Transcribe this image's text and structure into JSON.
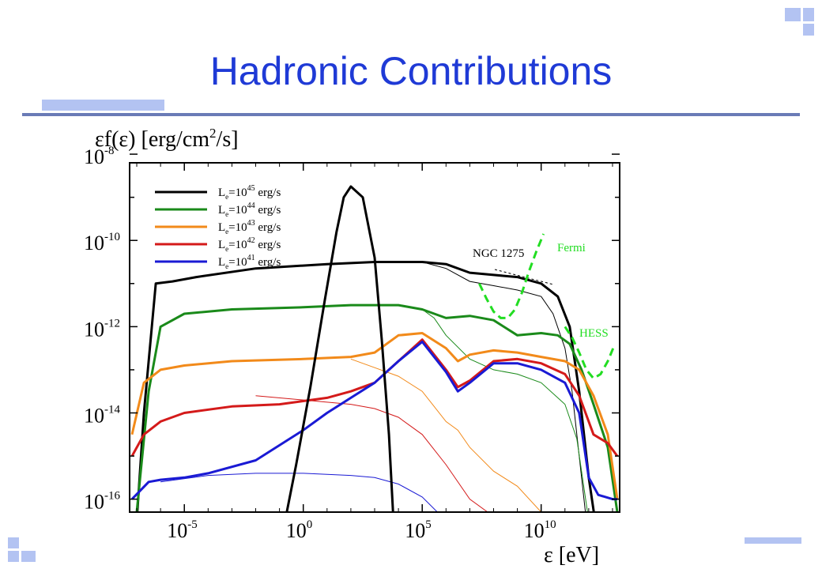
{
  "slide": {
    "title": "Hadronic Contributions"
  },
  "colors": {
    "title": "#1f3ad6",
    "decoration": "#b3c3f2",
    "rule": "#6a7bb6"
  },
  "chart_data": {
    "type": "line",
    "title": "",
    "ylabel": "εf(ε) [erg/cm²/s]",
    "xlabel": "ε [eV]",
    "x_scale": "log",
    "y_scale": "log",
    "xlim_log10": [
      -7.3,
      13.3
    ],
    "ylim_log10": [
      -16.3,
      -8.2
    ],
    "x_ticks": [
      {
        "base": "10",
        "exp": "-5",
        "log10": -5
      },
      {
        "base": "10",
        "exp": "0",
        "log10": 0
      },
      {
        "base": "10",
        "exp": "5",
        "log10": 5
      },
      {
        "base": "10",
        "exp": "10",
        "log10": 10
      }
    ],
    "y_ticks": [
      {
        "base": "10",
        "exp": "-8",
        "log10": -8
      },
      {
        "base": "10",
        "exp": "-10",
        "log10": -10
      },
      {
        "base": "10",
        "exp": "-12",
        "log10": -12
      },
      {
        "base": "10",
        "exp": "-14",
        "log10": -14
      },
      {
        "base": "10",
        "exp": "-16",
        "log10": -16
      }
    ],
    "legend_position": "top-left",
    "series": [
      {
        "name": "Le=10^45 erg/s",
        "color": "#000000",
        "label": {
          "sub": "e",
          "exp": "45"
        },
        "log_x": [
          -7.0,
          -6.7,
          -6.2,
          -5.5,
          -4.5,
          -2,
          1,
          3,
          5,
          6,
          7,
          8,
          9,
          10,
          10.7,
          11.2,
          11.6,
          12.0,
          12.4
        ],
        "log_y": [
          -16.5,
          -14.0,
          -11.0,
          -10.95,
          -10.85,
          -10.65,
          -10.55,
          -10.5,
          -10.5,
          -10.55,
          -10.75,
          -10.8,
          -10.85,
          -11.0,
          -11.3,
          -12.0,
          -13.5,
          -15.5,
          -17.0
        ],
        "thin_log_x": [
          5,
          6,
          7,
          8,
          9,
          10,
          10.5,
          11.0,
          11.3,
          11.6,
          12.0
        ],
        "thin_log_y": [
          -10.5,
          -10.65,
          -10.95,
          -11.05,
          -11.15,
          -11.3,
          -11.7,
          -12.5,
          -13.5,
          -15.0,
          -17.0
        ]
      },
      {
        "name": "Le=10^44 erg/s",
        "color": "#1a8a1a",
        "label": {
          "sub": "e",
          "exp": "44"
        },
        "log_x": [
          -7.0,
          -6.5,
          -6.0,
          -5.0,
          -3,
          0,
          2,
          4,
          5,
          6,
          7,
          8,
          9,
          10,
          10.7,
          11.2,
          11.7,
          12.2,
          12.8,
          13.2
        ],
        "log_y": [
          -16.3,
          -13.5,
          -12.0,
          -11.7,
          -11.6,
          -11.55,
          -11.5,
          -11.5,
          -11.6,
          -11.8,
          -11.75,
          -11.85,
          -12.2,
          -12.15,
          -12.2,
          -12.4,
          -13.0,
          -13.8,
          -14.8,
          -16.3
        ],
        "thin_log_x": [
          5,
          5.5,
          6,
          7,
          8,
          9,
          10,
          11,
          11.5,
          12.0
        ],
        "thin_log_y": [
          -11.6,
          -11.8,
          -12.2,
          -12.75,
          -13.0,
          -13.1,
          -13.3,
          -13.8,
          -14.6,
          -16.5
        ]
      },
      {
        "name": "Le=10^43 erg/s",
        "color": "#f28a1a",
        "label": {
          "sub": "e",
          "exp": "43"
        },
        "log_x": [
          -7.2,
          -6.7,
          -6.0,
          -5.0,
          -3,
          0,
          2,
          3,
          4,
          5,
          6,
          6.5,
          7,
          8,
          9,
          10,
          11,
          11.6,
          12.2,
          12.8,
          13.2
        ],
        "log_y": [
          -14.5,
          -13.3,
          -13.0,
          -12.9,
          -12.8,
          -12.75,
          -12.7,
          -12.6,
          -12.2,
          -12.15,
          -12.5,
          -12.8,
          -12.65,
          -12.55,
          -12.6,
          -12.7,
          -12.8,
          -13.0,
          -13.6,
          -14.5,
          -16.0
        ],
        "thin_log_x": [
          2,
          3,
          4,
          5,
          6,
          6.5,
          7,
          8,
          9,
          10
        ],
        "thin_log_y": [
          -12.75,
          -12.95,
          -13.15,
          -13.5,
          -14.2,
          -14.4,
          -14.8,
          -15.35,
          -15.7,
          -16.3
        ]
      },
      {
        "name": "Le=10^42 erg/s",
        "color": "#d41a1a",
        "label": {
          "sub": "e",
          "exp": "42"
        },
        "log_x": [
          -7.2,
          -6.7,
          -6.0,
          -5.0,
          -3,
          -1,
          1,
          2,
          3,
          4,
          5,
          6,
          6.5,
          7,
          8,
          9,
          10,
          11,
          11.6,
          12.2,
          12.8,
          13.2
        ],
        "log_y": [
          -15.0,
          -14.5,
          -14.2,
          -14.0,
          -13.85,
          -13.8,
          -13.65,
          -13.5,
          -13.3,
          -12.8,
          -12.3,
          -13.0,
          -13.4,
          -13.25,
          -12.8,
          -12.75,
          -12.85,
          -13.1,
          -13.6,
          -14.5,
          -14.7,
          -15.0
        ],
        "thin_log_x": [
          -2,
          0,
          1,
          2,
          3,
          4,
          5,
          6,
          7,
          8,
          9
        ],
        "thin_log_y": [
          -13.6,
          -13.7,
          -13.75,
          -13.8,
          -13.9,
          -14.1,
          -14.5,
          -15.2,
          -16.0,
          -16.4,
          -16.6
        ]
      },
      {
        "name": "Le=10^41 erg/s",
        "color": "#1a1ad4",
        "label": {
          "sub": "e",
          "exp": "41"
        },
        "log_x": [
          -7.2,
          -6.5,
          -6.0,
          -5.0,
          -4,
          -2,
          0,
          1,
          2,
          3,
          4,
          5,
          6,
          6.5,
          7,
          8,
          9,
          10,
          11,
          11.6,
          12.0,
          12.4,
          13.0,
          13.2
        ],
        "log_y": [
          -16.0,
          -15.6,
          -15.55,
          -15.5,
          -15.4,
          -15.1,
          -14.4,
          -14.0,
          -13.65,
          -13.3,
          -12.8,
          -12.35,
          -13.05,
          -13.5,
          -13.3,
          -12.85,
          -12.85,
          -13.0,
          -13.3,
          -14.0,
          -15.5,
          -15.9,
          -16.0,
          -16.0
        ],
        "thin_log_x": [
          -6.0,
          -4,
          -2,
          0,
          2,
          3,
          4,
          5,
          6,
          6.5,
          7,
          8
        ],
        "thin_log_y": [
          -15.6,
          -15.45,
          -15.4,
          -15.4,
          -15.45,
          -15.5,
          -15.65,
          -15.95,
          -16.5,
          -16.7,
          -16.9,
          -17.5
        ]
      },
      {
        "name": "peak",
        "color": "#000000",
        "log_x": [
          -0.8,
          -0.3,
          0.3,
          0.9,
          1.4,
          1.7,
          2.0,
          2.5,
          3.0,
          3.3,
          3.6,
          3.8
        ],
        "log_y": [
          -16.6,
          -15.2,
          -13.4,
          -11.4,
          -9.8,
          -9.0,
          -8.75,
          -9.0,
          -10.4,
          -12.3,
          -14.5,
          -16.6
        ]
      }
    ],
    "annotations": {
      "ngc": {
        "text": "NGC 1275",
        "color": "#000000"
      },
      "fermi": {
        "text": "Fermi",
        "color": "#22dd22",
        "log_x": [
          7.4,
          7.7,
          8.0,
          8.3,
          8.6,
          8.9,
          9.2,
          9.5,
          9.8,
          10.1
        ],
        "log_y": [
          -11.0,
          -11.35,
          -11.65,
          -11.8,
          -11.8,
          -11.6,
          -11.2,
          -10.7,
          -10.25,
          -9.85
        ]
      },
      "hess": {
        "text": "HESS",
        "color": "#22dd22",
        "log_x": [
          11.0,
          11.3,
          11.6,
          11.9,
          12.2,
          12.5,
          12.8,
          13.1
        ],
        "log_y": [
          -12.0,
          -12.25,
          -12.6,
          -13.0,
          -13.2,
          -13.1,
          -12.8,
          -12.4
        ]
      }
    }
  }
}
